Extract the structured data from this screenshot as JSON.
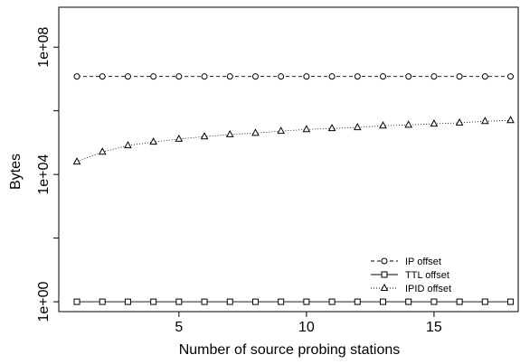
{
  "chart_data": {
    "type": "line",
    "x_label": "Number of source probing stations",
    "y_label": "Bytes",
    "log_y": true,
    "xlim": [
      0.29,
      18.3
    ],
    "xticks": [
      5,
      10,
      15
    ],
    "ylim": [
      0.49,
      1800000000
    ],
    "yticks": [
      {
        "value": 1,
        "label": "1e+00"
      },
      {
        "value": 10000,
        "label": "1e+04"
      },
      {
        "value": 100000000,
        "label": "1e+08"
      }
    ],
    "yminor_ticks": [
      100,
      1000000
    ],
    "legend": "bottom-right",
    "x": [
      1,
      2,
      3,
      4,
      5,
      6,
      7,
      8,
      9,
      10,
      11,
      12,
      13,
      14,
      15,
      16,
      17,
      18
    ],
    "series": [
      {
        "name": "IP offset",
        "color": "#000",
        "dash": "dashed",
        "marker": "circle",
        "values": [
          12000000,
          12000000,
          12000000,
          12000000,
          12000000,
          12000000,
          12000000,
          12000000,
          12000000,
          12000000,
          12000000,
          12000000,
          12000000,
          12000000,
          12000000,
          12000000,
          12000000,
          12000000
        ]
      },
      {
        "name": "TTL offset",
        "color": "#000",
        "dash": "solid",
        "marker": "square",
        "values": [
          1,
          1,
          1,
          1,
          1,
          1,
          1,
          1,
          1,
          1,
          1,
          1,
          1,
          1,
          1,
          1,
          1,
          1
        ]
      },
      {
        "name": "IPID offset",
        "color": "#000",
        "dash": "dotted",
        "marker": "triangle",
        "values": [
          25000,
          51000,
          81000,
          105000,
          130000,
          155000,
          180000,
          200000,
          230000,
          260000,
          280000,
          300000,
          340000,
          360000,
          390000,
          420000,
          470000,
          500000
        ]
      }
    ]
  }
}
